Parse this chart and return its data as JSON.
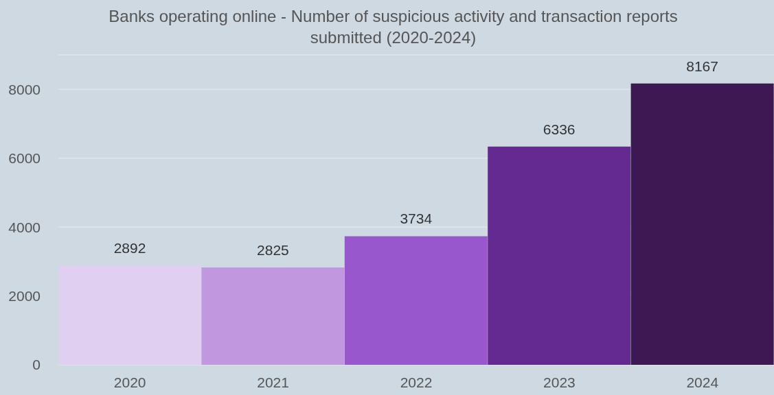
{
  "chart_data": {
    "type": "bar",
    "title": "Banks operating online - Number of suspicious activity and transaction reports submitted (2020-2024)",
    "categories": [
      "2020",
      "2021",
      "2022",
      "2023",
      "2024"
    ],
    "values": [
      2892,
      2825,
      3734,
      6336,
      8167
    ],
    "colors": [
      "#e1cff2",
      "#c197e0",
      "#9957cd",
      "#652a91",
      "#3d1952"
    ],
    "ylim": [
      0,
      9000
    ],
    "yticks": [
      0,
      2000,
      4000,
      6000,
      8000
    ],
    "grid": "y",
    "data_labels": true
  }
}
